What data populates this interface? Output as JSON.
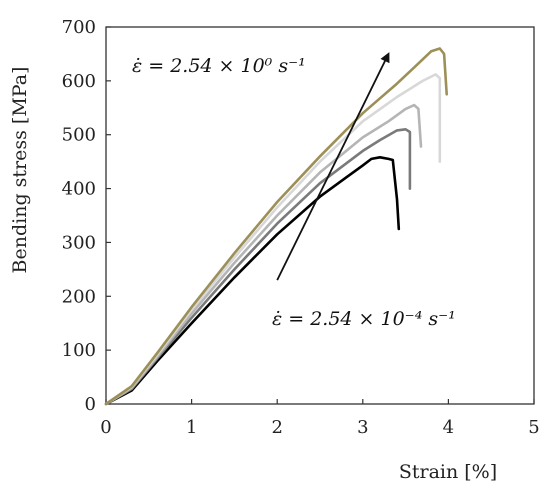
{
  "chart_data": {
    "type": "line",
    "xlabel": "Strain [%]",
    "ylabel": "Bending stress [MPa]",
    "xlim": [
      0,
      5
    ],
    "ylim": [
      0,
      700
    ],
    "x_ticks": [
      "0",
      "1",
      "2",
      "3",
      "4",
      "5"
    ],
    "y_ticks": [
      "0",
      "100",
      "200",
      "300",
      "400",
      "500",
      "600",
      "700"
    ],
    "grid": false,
    "legend": "none",
    "annotations": {
      "top": "ε̇ = 2.54 × 10⁰ s⁻¹",
      "bottom": "ε̇ = 2.54 × 10⁻⁴ s⁻¹",
      "arrow": {
        "from": [
          2.0,
          230
        ],
        "to": [
          3.3,
          650
        ]
      }
    },
    "series": [
      {
        "color": "#000000",
        "x": [
          0,
          0.3,
          0.6,
          1.0,
          1.5,
          2.0,
          2.5,
          2.8,
          3.0,
          3.1,
          3.2,
          3.3,
          3.35,
          3.4,
          3.42
        ],
        "y": [
          0,
          25,
          80,
          150,
          235,
          315,
          385,
          420,
          443,
          455,
          458,
          455,
          453,
          380,
          325
        ]
      },
      {
        "color": "#7a7a7a",
        "x": [
          0,
          0.3,
          0.6,
          1.0,
          1.5,
          2.0,
          2.5,
          3.0,
          3.2,
          3.4,
          3.5,
          3.55,
          3.55
        ],
        "y": [
          0,
          28,
          85,
          160,
          250,
          335,
          410,
          470,
          490,
          508,
          510,
          505,
          400
        ]
      },
      {
        "color": "#b5b5b5",
        "x": [
          0,
          0.3,
          0.6,
          1.0,
          1.5,
          2.0,
          2.5,
          3.0,
          3.3,
          3.5,
          3.6,
          3.65,
          3.68
        ],
        "y": [
          0,
          30,
          88,
          168,
          262,
          350,
          430,
          495,
          525,
          548,
          555,
          548,
          478
        ]
      },
      {
        "color": "#d8d8d8",
        "x": [
          0,
          0.3,
          0.6,
          1.0,
          1.5,
          2.0,
          2.5,
          3.0,
          3.4,
          3.7,
          3.85,
          3.9,
          3.9
        ],
        "y": [
          0,
          32,
          92,
          175,
          272,
          365,
          450,
          525,
          570,
          600,
          612,
          605,
          450
        ]
      },
      {
        "color": "#9c9058",
        "x": [
          0,
          0.3,
          0.6,
          1.0,
          1.5,
          2.0,
          2.5,
          3.0,
          3.4,
          3.6,
          3.8,
          3.9,
          3.95,
          3.98
        ],
        "y": [
          0,
          33,
          95,
          180,
          280,
          375,
          460,
          540,
          595,
          625,
          655,
          660,
          650,
          575
        ]
      }
    ]
  }
}
